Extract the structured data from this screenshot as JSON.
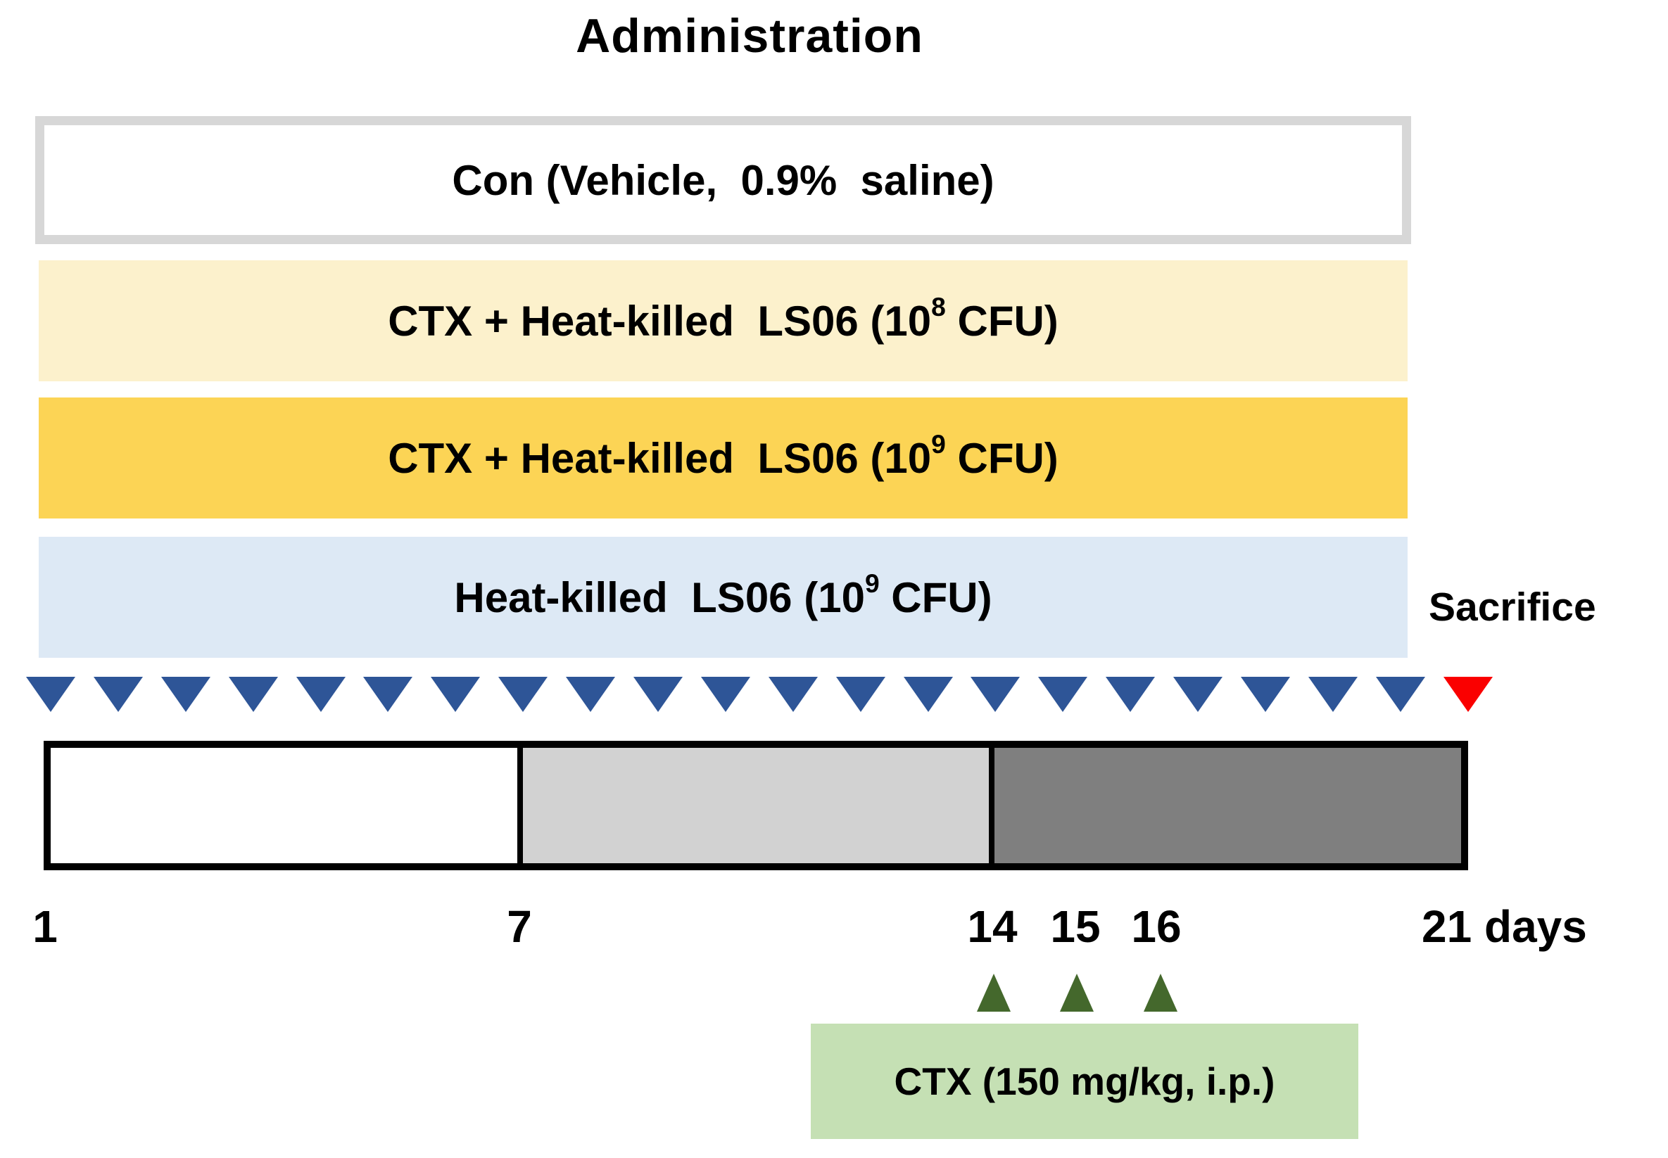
{
  "title": "Administration",
  "groups": [
    {
      "id": "control",
      "label_pre": "Con (Vehicle,  0.9%  saline)",
      "label_sup": "",
      "label_post": "",
      "fill_color": "#ffffff",
      "border_color": "#d7d7d7"
    },
    {
      "id": "ctx-heat-killed-ls06-1e8",
      "label_pre": "CTX + Heat-killed  LS06 (10",
      "label_sup": "8",
      "label_post": " CFU)",
      "fill_color": "#fcf1cc"
    },
    {
      "id": "ctx-heat-killed-ls06-1e9",
      "label_pre": "CTX + Heat-killed  LS06 (10",
      "label_sup": "9",
      "label_post": " CFU)",
      "fill_color": "#fcd455"
    },
    {
      "id": "heat-killed-ls06-1e9",
      "label_pre": "Heat-killed  LS06 (10",
      "label_sup": "9",
      "label_post": " CFU)",
      "fill_color": "#dde9f5"
    }
  ],
  "sacrifice_label": "Sacrifice",
  "markers": {
    "daily_administration_count": 21,
    "daily_marker_color": "#2e5597",
    "sacrifice_marker_color": "#fa0000"
  },
  "timeline": {
    "segment_colors": [
      "#ffffff",
      "#d2d2d2",
      "#7f7f7f"
    ],
    "day_labels": {
      "d1": "1",
      "d7": "7",
      "d14": "14",
      "d15": "15",
      "d16": "16",
      "end": "21 days"
    }
  },
  "ctx_injection": {
    "label": "CTX (150 mg/kg, i.p.)",
    "arrow_count": 3,
    "arrow_color": "#44682c",
    "box_color": "#c5e0b4"
  }
}
